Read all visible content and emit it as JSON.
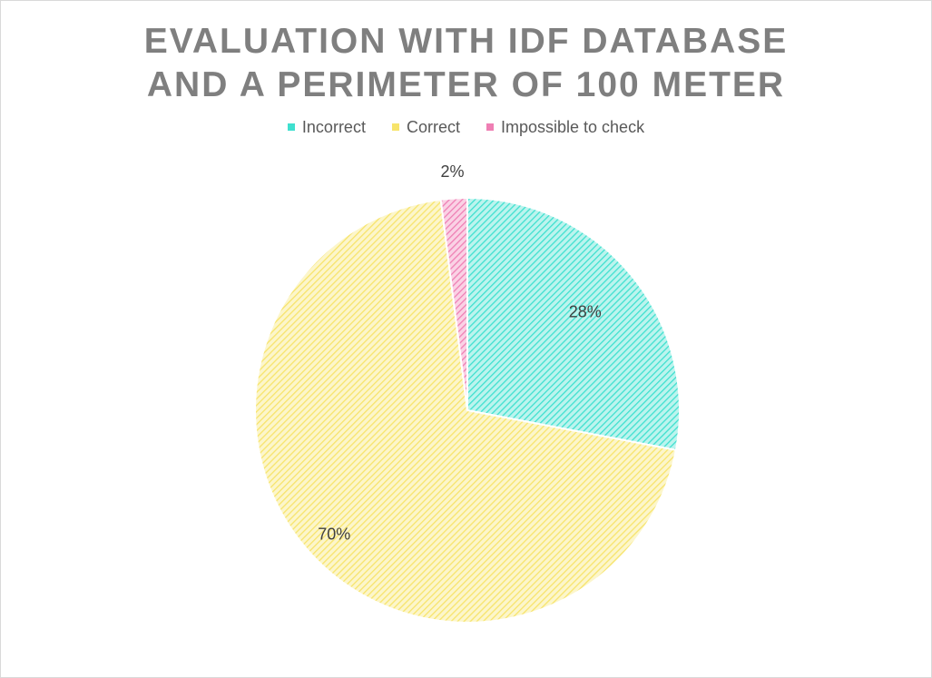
{
  "chart_data": {
    "type": "pie",
    "title_lines": [
      "EVALUATION WITH IDF DATABASE",
      "AND A PERIMETER OF 100 METER"
    ],
    "legend_position": "top",
    "categories": [
      "Incorrect",
      "Correct",
      "Impossible to check"
    ],
    "values": [
      28,
      70,
      2
    ],
    "data_labels": [
      "28%",
      "70%",
      "2%"
    ],
    "colors": [
      "#3fe0cf",
      "#f7e46b",
      "#ef7fb4"
    ],
    "fill_pattern": "diagonal-hatch"
  }
}
